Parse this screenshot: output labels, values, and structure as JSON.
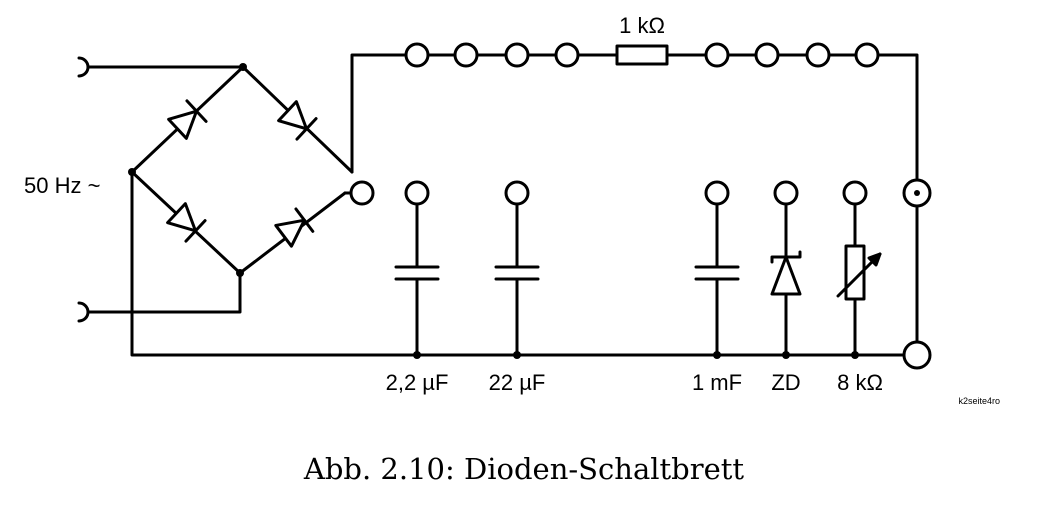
{
  "labels": {
    "source": "50 Hz ~",
    "resistor_top": "1 kΩ",
    "cap1": "2,2 µF",
    "cap2": "22 µF",
    "cap3": "1 mF",
    "zener": "ZD",
    "pot": "8 kΩ",
    "tag": "k2seite4ro"
  },
  "caption": "Abb. 2.10: Dioden-Schaltbrett"
}
